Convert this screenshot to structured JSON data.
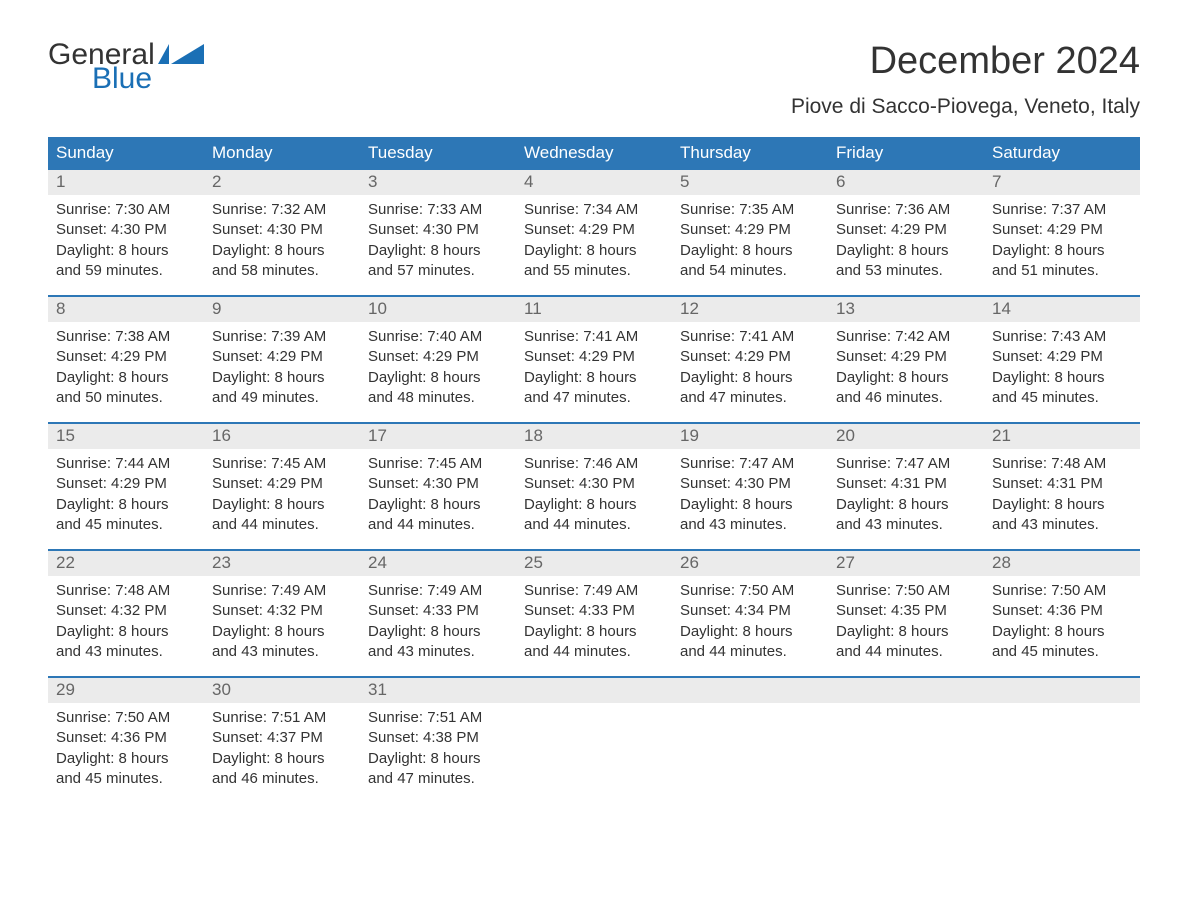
{
  "logo": {
    "text1": "General",
    "text2": "Blue",
    "shape_color": "#1a6fb5"
  },
  "title": "December 2024",
  "location": "Piove di Sacco-Piovega, Veneto, Italy",
  "colors": {
    "header_bg": "#2d77b6",
    "header_text": "#ffffff",
    "daynum_bg": "#ebebeb",
    "daynum_text": "#666666",
    "body_text": "#333333",
    "accent": "#1a6fb5",
    "background": "#ffffff"
  },
  "typography": {
    "title_fontsize": 38,
    "location_fontsize": 21,
    "header_fontsize": 17,
    "daynum_fontsize": 17,
    "cell_fontsize": 15,
    "logo_fontsize": 30
  },
  "day_headers": [
    "Sunday",
    "Monday",
    "Tuesday",
    "Wednesday",
    "Thursday",
    "Friday",
    "Saturday"
  ],
  "weeks": [
    {
      "days": [
        {
          "num": "1",
          "sunrise": "7:30 AM",
          "sunset": "4:30 PM",
          "daylight1": "Daylight: 8 hours",
          "daylight2": "and 59 minutes."
        },
        {
          "num": "2",
          "sunrise": "7:32 AM",
          "sunset": "4:30 PM",
          "daylight1": "Daylight: 8 hours",
          "daylight2": "and 58 minutes."
        },
        {
          "num": "3",
          "sunrise": "7:33 AM",
          "sunset": "4:30 PM",
          "daylight1": "Daylight: 8 hours",
          "daylight2": "and 57 minutes."
        },
        {
          "num": "4",
          "sunrise": "7:34 AM",
          "sunset": "4:29 PM",
          "daylight1": "Daylight: 8 hours",
          "daylight2": "and 55 minutes."
        },
        {
          "num": "5",
          "sunrise": "7:35 AM",
          "sunset": "4:29 PM",
          "daylight1": "Daylight: 8 hours",
          "daylight2": "and 54 minutes."
        },
        {
          "num": "6",
          "sunrise": "7:36 AM",
          "sunset": "4:29 PM",
          "daylight1": "Daylight: 8 hours",
          "daylight2": "and 53 minutes."
        },
        {
          "num": "7",
          "sunrise": "7:37 AM",
          "sunset": "4:29 PM",
          "daylight1": "Daylight: 8 hours",
          "daylight2": "and 51 minutes."
        }
      ]
    },
    {
      "days": [
        {
          "num": "8",
          "sunrise": "7:38 AM",
          "sunset": "4:29 PM",
          "daylight1": "Daylight: 8 hours",
          "daylight2": "and 50 minutes."
        },
        {
          "num": "9",
          "sunrise": "7:39 AM",
          "sunset": "4:29 PM",
          "daylight1": "Daylight: 8 hours",
          "daylight2": "and 49 minutes."
        },
        {
          "num": "10",
          "sunrise": "7:40 AM",
          "sunset": "4:29 PM",
          "daylight1": "Daylight: 8 hours",
          "daylight2": "and 48 minutes."
        },
        {
          "num": "11",
          "sunrise": "7:41 AM",
          "sunset": "4:29 PM",
          "daylight1": "Daylight: 8 hours",
          "daylight2": "and 47 minutes."
        },
        {
          "num": "12",
          "sunrise": "7:41 AM",
          "sunset": "4:29 PM",
          "daylight1": "Daylight: 8 hours",
          "daylight2": "and 47 minutes."
        },
        {
          "num": "13",
          "sunrise": "7:42 AM",
          "sunset": "4:29 PM",
          "daylight1": "Daylight: 8 hours",
          "daylight2": "and 46 minutes."
        },
        {
          "num": "14",
          "sunrise": "7:43 AM",
          "sunset": "4:29 PM",
          "daylight1": "Daylight: 8 hours",
          "daylight2": "and 45 minutes."
        }
      ]
    },
    {
      "days": [
        {
          "num": "15",
          "sunrise": "7:44 AM",
          "sunset": "4:29 PM",
          "daylight1": "Daylight: 8 hours",
          "daylight2": "and 45 minutes."
        },
        {
          "num": "16",
          "sunrise": "7:45 AM",
          "sunset": "4:29 PM",
          "daylight1": "Daylight: 8 hours",
          "daylight2": "and 44 minutes."
        },
        {
          "num": "17",
          "sunrise": "7:45 AM",
          "sunset": "4:30 PM",
          "daylight1": "Daylight: 8 hours",
          "daylight2": "and 44 minutes."
        },
        {
          "num": "18",
          "sunrise": "7:46 AM",
          "sunset": "4:30 PM",
          "daylight1": "Daylight: 8 hours",
          "daylight2": "and 44 minutes."
        },
        {
          "num": "19",
          "sunrise": "7:47 AM",
          "sunset": "4:30 PM",
          "daylight1": "Daylight: 8 hours",
          "daylight2": "and 43 minutes."
        },
        {
          "num": "20",
          "sunrise": "7:47 AM",
          "sunset": "4:31 PM",
          "daylight1": "Daylight: 8 hours",
          "daylight2": "and 43 minutes."
        },
        {
          "num": "21",
          "sunrise": "7:48 AM",
          "sunset": "4:31 PM",
          "daylight1": "Daylight: 8 hours",
          "daylight2": "and 43 minutes."
        }
      ]
    },
    {
      "days": [
        {
          "num": "22",
          "sunrise": "7:48 AM",
          "sunset": "4:32 PM",
          "daylight1": "Daylight: 8 hours",
          "daylight2": "and 43 minutes."
        },
        {
          "num": "23",
          "sunrise": "7:49 AM",
          "sunset": "4:32 PM",
          "daylight1": "Daylight: 8 hours",
          "daylight2": "and 43 minutes."
        },
        {
          "num": "24",
          "sunrise": "7:49 AM",
          "sunset": "4:33 PM",
          "daylight1": "Daylight: 8 hours",
          "daylight2": "and 43 minutes."
        },
        {
          "num": "25",
          "sunrise": "7:49 AM",
          "sunset": "4:33 PM",
          "daylight1": "Daylight: 8 hours",
          "daylight2": "and 44 minutes."
        },
        {
          "num": "26",
          "sunrise": "7:50 AM",
          "sunset": "4:34 PM",
          "daylight1": "Daylight: 8 hours",
          "daylight2": "and 44 minutes."
        },
        {
          "num": "27",
          "sunrise": "7:50 AM",
          "sunset": "4:35 PM",
          "daylight1": "Daylight: 8 hours",
          "daylight2": "and 44 minutes."
        },
        {
          "num": "28",
          "sunrise": "7:50 AM",
          "sunset": "4:36 PM",
          "daylight1": "Daylight: 8 hours",
          "daylight2": "and 45 minutes."
        }
      ]
    },
    {
      "days": [
        {
          "num": "29",
          "sunrise": "7:50 AM",
          "sunset": "4:36 PM",
          "daylight1": "Daylight: 8 hours",
          "daylight2": "and 45 minutes."
        },
        {
          "num": "30",
          "sunrise": "7:51 AM",
          "sunset": "4:37 PM",
          "daylight1": "Daylight: 8 hours",
          "daylight2": "and 46 minutes."
        },
        {
          "num": "31",
          "sunrise": "7:51 AM",
          "sunset": "4:38 PM",
          "daylight1": "Daylight: 8 hours",
          "daylight2": "and 47 minutes."
        },
        {
          "empty": true
        },
        {
          "empty": true
        },
        {
          "empty": true
        },
        {
          "empty": true
        }
      ]
    }
  ],
  "labels": {
    "sunrise": "Sunrise: ",
    "sunset": "Sunset: "
  }
}
